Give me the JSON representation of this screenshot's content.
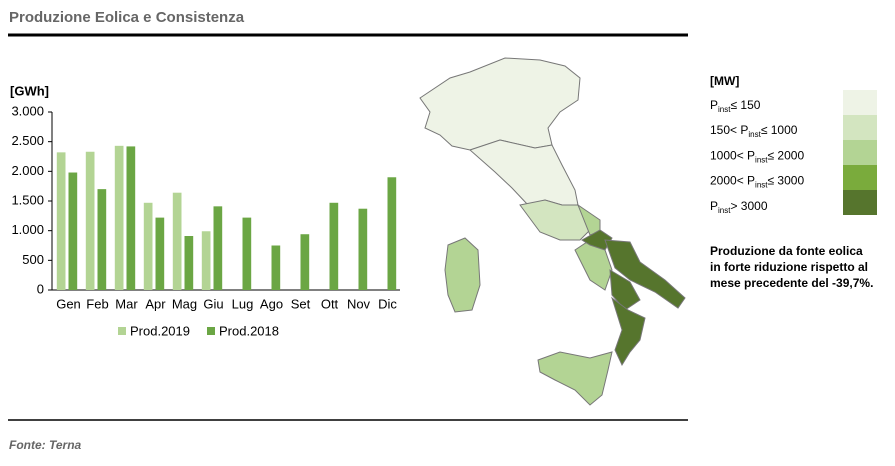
{
  "header": {
    "title": "Produzione Eolica e Consistenza"
  },
  "chart_data": {
    "type": "bar",
    "y_label": "[GWh]",
    "categories": [
      "Gen",
      "Feb",
      "Mar",
      "Apr",
      "Mag",
      "Giu",
      "Lug",
      "Ago",
      "Set",
      "Ott",
      "Nov",
      "Dic"
    ],
    "series": [
      {
        "name": "Prod.2019",
        "color": "#b3d494",
        "values": [
          2320,
          2330,
          2430,
          1470,
          1640,
          990,
          null,
          null,
          null,
          null,
          null,
          null
        ]
      },
      {
        "name": "Prod.2018",
        "color": "#6ba644",
        "values": [
          1980,
          1700,
          2420,
          1220,
          910,
          1410,
          1220,
          750,
          940,
          1470,
          1370,
          1900
        ]
      }
    ],
    "ylim": [
      0,
      3000
    ],
    "yticks": [
      0,
      500,
      {
        "value": 1000,
        "label": "1.000"
      },
      {
        "value": 1500,
        "label": "1.500"
      },
      {
        "value": 2000,
        "label": "2.000"
      },
      {
        "value": 2500,
        "label": "2.500"
      },
      {
        "value": 3000,
        "label": "3.000"
      }
    ],
    "grid": false
  },
  "map_legend": {
    "unit": "[MW]",
    "items": [
      {
        "prefix": "P",
        "sub": "inst",
        "suffix": "≤ 150",
        "color": "#eef3e6"
      },
      {
        "prefix": "150< P",
        "sub": "inst",
        "suffix": "≤ 1000",
        "color": "#d3e5c0"
      },
      {
        "prefix": "1000< P",
        "sub": "inst",
        "suffix": "≤ 2000",
        "color": "#b3d494"
      },
      {
        "prefix": "2000< P",
        "sub": "inst",
        "suffix": "≤ 3000",
        "color": "#7aab3c"
      },
      {
        "prefix": "P",
        "sub": "inst",
        "suffix": "> 3000",
        "color": "#56752d"
      }
    ]
  },
  "note": [
    "Produzione da fonte eolica",
    "in forte riduzione rispetto al",
    "mese precedente del -39,7%."
  ],
  "source": "Fonte: Terna"
}
